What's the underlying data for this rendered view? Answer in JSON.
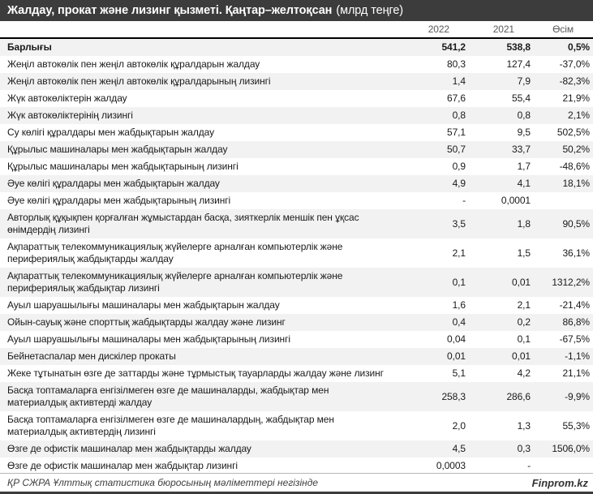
{
  "title": {
    "main": "Жалдау, прокат және лизинг қызметі. Қаңтар–желтоқсан",
    "unit": "(млрд теңге)"
  },
  "table": {
    "columns": [
      "2022",
      "2021",
      "Өсім"
    ],
    "rows": [
      {
        "label": "Барлығы",
        "v2022": "541,2",
        "v2021": "538,8",
        "growth": "0,5%",
        "bold": true
      },
      {
        "label": "Жеңіл автокөлік пен жеңіл автокөлік құралдарын жалдау",
        "v2022": "80,3",
        "v2021": "127,4",
        "growth": "-37,0%"
      },
      {
        "label": "Жеңіл автокөлік пен жеңіл автокөлік құралдарының лизингі",
        "v2022": "1,4",
        "v2021": "7,9",
        "growth": "-82,3%"
      },
      {
        "label": "Жүк автокөліктерін жалдау",
        "v2022": "67,6",
        "v2021": "55,4",
        "growth": "21,9%"
      },
      {
        "label": "Жүк автокөліктерінің лизингі",
        "v2022": "0,8",
        "v2021": "0,8",
        "growth": "2,1%"
      },
      {
        "label": "Су көлігі құралдары мен жабдықтарын жалдау",
        "v2022": "57,1",
        "v2021": "9,5",
        "growth": "502,5%"
      },
      {
        "label": "Құрылыс машиналары мен жабдықтарын жалдау",
        "v2022": "50,7",
        "v2021": "33,7",
        "growth": "50,2%"
      },
      {
        "label": "Құрылыс машиналары мен жабдықтарының лизингі",
        "v2022": "0,9",
        "v2021": "1,7",
        "growth": "-48,6%"
      },
      {
        "label": "Әуе көлігі құралдары мен жабдықтарын жалдау",
        "v2022": "4,9",
        "v2021": "4,1",
        "growth": "18,1%"
      },
      {
        "label": "Әуе көлігі құралдары мен жабдықтарының лизингі",
        "v2022": "-",
        "v2021": "0,0001",
        "growth": ""
      },
      {
        "label": "Авторлық құқықпен қорғалған жұмыстардан басқа, зияткерлік меншік пен ұқсас өнімдердің лизингі",
        "v2022": "3,5",
        "v2021": "1,8",
        "growth": "90,5%"
      },
      {
        "label": "Ақпараттық телекоммуникациялық жүйелерге арналған компьютерлік және перифериялық жабдықтарды жалдау",
        "v2022": "2,1",
        "v2021": "1,5",
        "growth": "36,1%"
      },
      {
        "label": "Ақпараттық телекоммуникациялық жүйелерге арналған компьютерлік және перифериялық жабдықтар лизингі",
        "v2022": "0,1",
        "v2021": "0,01",
        "growth": "1312,2%"
      },
      {
        "label": "Ауыл шаруашылығы машиналары мен жабдықтарын жалдау",
        "v2022": "1,6",
        "v2021": "2,1",
        "growth": "-21,4%"
      },
      {
        "label": "Ойын-сауық және спорттық жабдықтарды жалдау және лизинг",
        "v2022": "0,4",
        "v2021": "0,2",
        "growth": "86,8%"
      },
      {
        "label": "Ауыл шаруашылығы машиналары мен жабдықтарының лизингі",
        "v2022": "0,04",
        "v2021": "0,1",
        "growth": "-67,5%"
      },
      {
        "label": "Бейнетаспалар мен дискілер прокаты",
        "v2022": "0,01",
        "v2021": "0,01",
        "growth": "-1,1%"
      },
      {
        "label": "Жеке тұтынатын өзге де заттарды және тұрмыстық тауарларды жалдау және лизинг",
        "v2022": "5,1",
        "v2021": "4,2",
        "growth": "21,1%"
      },
      {
        "label": "Басқа топтамаларға енгізілмеген өзге де машиналарды, жабдықтар мен материалдық активтерді жалдау",
        "v2022": "258,3",
        "v2021": "286,6",
        "growth": "-9,9%"
      },
      {
        "label": "Басқа топтамаларға енгізілмеген өзге де машиналардың, жабдықтар мен материалдық активтердің лизингі",
        "v2022": "2,0",
        "v2021": "1,3",
        "growth": "55,3%"
      },
      {
        "label": "Өзге де офистік машиналар мен жабдықтарды жалдау",
        "v2022": "4,5",
        "v2021": "0,3",
        "growth": "1506,0%"
      },
      {
        "label": "Өзге де офистік машиналар мен жабдықтар лизингі",
        "v2022": "0,0003",
        "v2021": "-",
        "growth": ""
      }
    ]
  },
  "footer": {
    "source": "ҚР СЖРА Ұлттық статистика бюросының мәліметтері негізінде",
    "brand": "Finprom.kz"
  },
  "colors": {
    "title_bg": "#3c3c3c",
    "stripe": "#f2f2f2",
    "text": "#1a1a1a",
    "muted": "#595959",
    "rule": "#000000"
  },
  "chart_data": {
    "type": "table",
    "title": "Жалдау, прокат және лизинг қызметі. Қаңтар–желтоқсан",
    "unit": "млрд теңге",
    "columns": [
      "2022",
      "2021",
      "Өсім"
    ],
    "rows": [
      {
        "label": "Барлығы",
        "y2022": 541.2,
        "y2021": 538.8,
        "growth_pct": 0.5
      },
      {
        "label": "Жеңіл автокөлік пен жеңіл автокөлік құралдарын жалдау",
        "y2022": 80.3,
        "y2021": 127.4,
        "growth_pct": -37.0
      },
      {
        "label": "Жеңіл автокөлік пен жеңіл автокөлік құралдарының лизингі",
        "y2022": 1.4,
        "y2021": 7.9,
        "growth_pct": -82.3
      },
      {
        "label": "Жүк автокөліктерін жалдау",
        "y2022": 67.6,
        "y2021": 55.4,
        "growth_pct": 21.9
      },
      {
        "label": "Жүк автокөліктерінің лизингі",
        "y2022": 0.8,
        "y2021": 0.8,
        "growth_pct": 2.1
      },
      {
        "label": "Су көлігі құралдары мен жабдықтарын жалдау",
        "y2022": 57.1,
        "y2021": 9.5,
        "growth_pct": 502.5
      },
      {
        "label": "Құрылыс машиналары мен жабдықтарын жалдау",
        "y2022": 50.7,
        "y2021": 33.7,
        "growth_pct": 50.2
      },
      {
        "label": "Құрылыс машиналары мен жабдықтарының лизингі",
        "y2022": 0.9,
        "y2021": 1.7,
        "growth_pct": -48.6
      },
      {
        "label": "Әуе көлігі құралдары мен жабдықтарын жалдау",
        "y2022": 4.9,
        "y2021": 4.1,
        "growth_pct": 18.1
      },
      {
        "label": "Әуе көлігі құралдары мен жабдықтарының лизингі",
        "y2022": null,
        "y2021": 0.0001,
        "growth_pct": null
      },
      {
        "label": "Авторлық құқықпен қорғалған жұмыстардан басқа, зияткерлік меншік пен ұқсас өнімдердің лизингі",
        "y2022": 3.5,
        "y2021": 1.8,
        "growth_pct": 90.5
      },
      {
        "label": "Ақпараттық телекоммуникациялық жүйелерге арналған компьютерлік және перифериялық жабдықтарды жалдау",
        "y2022": 2.1,
        "y2021": 1.5,
        "growth_pct": 36.1
      },
      {
        "label": "Ақпараттық телекоммуникациялық жүйелерге арналған компьютерлік және перифериялық жабдықтар лизингі",
        "y2022": 0.1,
        "y2021": 0.01,
        "growth_pct": 1312.2
      },
      {
        "label": "Ауыл шаруашылығы машиналары мен жабдықтарын жалдау",
        "y2022": 1.6,
        "y2021": 2.1,
        "growth_pct": -21.4
      },
      {
        "label": "Ойын-сауық және спорттық жабдықтарды жалдау және лизинг",
        "y2022": 0.4,
        "y2021": 0.2,
        "growth_pct": 86.8
      },
      {
        "label": "Ауыл шаруашылығы машиналары мен жабдықтарының лизингі",
        "y2022": 0.04,
        "y2021": 0.1,
        "growth_pct": -67.5
      },
      {
        "label": "Бейнетаспалар мен дискілер прокаты",
        "y2022": 0.01,
        "y2021": 0.01,
        "growth_pct": -1.1
      },
      {
        "label": "Жеке тұтынатын өзге де заттарды және тұрмыстық тауарларды жалдау және лизинг",
        "y2022": 5.1,
        "y2021": 4.2,
        "growth_pct": 21.1
      },
      {
        "label": "Басқа топтамаларға енгізілмеген өзге де машиналарды, жабдықтар мен материалдық активтерді жалдау",
        "y2022": 258.3,
        "y2021": 286.6,
        "growth_pct": -9.9
      },
      {
        "label": "Басқа топтамаларға енгізілмеген өзге де машиналардың, жабдықтар мен материалдық активтердің лизингі",
        "y2022": 2.0,
        "y2021": 1.3,
        "growth_pct": 55.3
      },
      {
        "label": "Өзге де офистік машиналар мен жабдықтарды жалдау",
        "y2022": 4.5,
        "y2021": 0.3,
        "growth_pct": 1506.0
      },
      {
        "label": "Өзге де офистік машиналар мен жабдықтар лизингі",
        "y2022": 0.0003,
        "y2021": null,
        "growth_pct": null
      }
    ]
  }
}
